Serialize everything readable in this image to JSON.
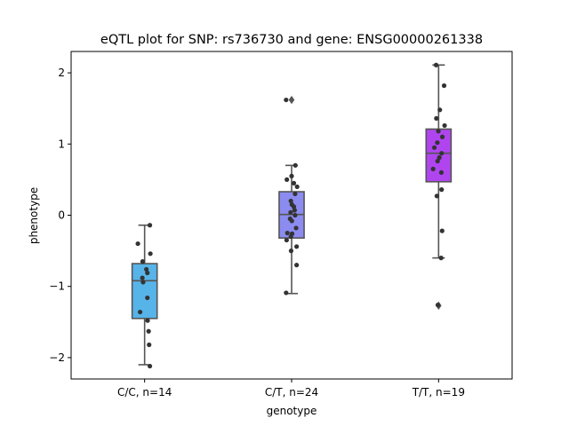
{
  "chart_data": {
    "type": "box",
    "title": "eQTL plot for SNP: rs736730 and gene: ENSG00000261338",
    "xlabel": "genotype",
    "ylabel": "phenotype",
    "ylim": [
      -2.3,
      2.3
    ],
    "yticks": [
      -2,
      -1,
      0,
      1,
      2
    ],
    "ytick_labels": [
      "−2",
      "−1",
      "0",
      "1",
      "2"
    ],
    "categories": [
      "C/C, n=14",
      "C/T, n=24",
      "T/T, n=19"
    ],
    "colors": [
      "#56b4e9",
      "#8b8bf0",
      "#b045f0"
    ],
    "boxes": [
      {
        "category": "C/C, n=14",
        "whisker_low": -2.1,
        "q1": -1.45,
        "median": -0.92,
        "q3": -0.68,
        "whisker_high": -0.14,
        "outliers": []
      },
      {
        "category": "C/T, n=24",
        "whisker_low": -1.1,
        "q1": -0.32,
        "median": 0.01,
        "q3": 0.33,
        "whisker_high": 0.7,
        "outliers": [
          1.62
        ]
      },
      {
        "category": "T/T, n=19",
        "whisker_low": -0.6,
        "q1": 0.47,
        "median": 0.87,
        "q3": 1.21,
        "whisker_high": 2.11,
        "outliers": [
          -1.27
        ]
      }
    ],
    "points": [
      [
        [
          -0.27,
          -0.4
        ],
        [
          0.21,
          -0.14
        ],
        [
          0.23,
          -0.54
        ],
        [
          -0.08,
          -0.65
        ],
        [
          0.07,
          -0.76
        ],
        [
          0.11,
          -0.81
        ],
        [
          -0.09,
          -0.88
        ],
        [
          -0.06,
          -0.94
        ],
        [
          0.11,
          -1.16
        ],
        [
          -0.18,
          -1.36
        ],
        [
          0.12,
          -1.48
        ],
        [
          0.16,
          -1.63
        ],
        [
          0.18,
          -1.82
        ],
        [
          0.21,
          -2.12
        ]
      ],
      [
        [
          -0.22,
          1.62
        ],
        [
          0.15,
          0.7
        ],
        [
          -0.19,
          0.5
        ],
        [
          0.0,
          0.55
        ],
        [
          0.09,
          0.45
        ],
        [
          0.22,
          0.4
        ],
        [
          0.14,
          0.3
        ],
        [
          -0.03,
          0.2
        ],
        [
          0.01,
          0.15
        ],
        [
          0.09,
          0.12
        ],
        [
          0.12,
          0.07
        ],
        [
          -0.04,
          0.04
        ],
        [
          0.14,
          0.0
        ],
        [
          -0.06,
          -0.05
        ],
        [
          0.01,
          -0.08
        ],
        [
          0.18,
          -0.18
        ],
        [
          -0.17,
          -0.25
        ],
        [
          0.02,
          -0.26
        ],
        [
          -0.2,
          -0.35
        ],
        [
          -0.03,
          -0.3
        ],
        [
          0.2,
          -0.44
        ],
        [
          -0.02,
          -0.5
        ],
        [
          0.2,
          -0.7
        ],
        [
          -0.22,
          -1.09
        ]
      ],
      [
        [
          -0.1,
          2.11
        ],
        [
          0.22,
          1.82
        ],
        [
          0.05,
          1.48
        ],
        [
          -0.09,
          1.36
        ],
        [
          0.24,
          1.26
        ],
        [
          -0.01,
          1.18
        ],
        [
          0.15,
          1.1
        ],
        [
          -0.05,
          1.02
        ],
        [
          -0.17,
          0.95
        ],
        [
          0.12,
          0.87
        ],
        [
          0.03,
          0.81
        ],
        [
          -0.04,
          0.76
        ],
        [
          -0.22,
          0.65
        ],
        [
          0.11,
          0.6
        ],
        [
          0.12,
          0.36
        ],
        [
          -0.07,
          0.27
        ],
        [
          0.14,
          -0.22
        ],
        [
          0.1,
          -0.6
        ],
        [
          -0.03,
          -1.26
        ]
      ]
    ]
  }
}
